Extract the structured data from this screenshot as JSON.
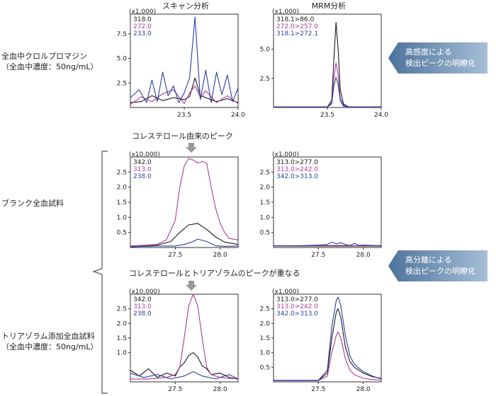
{
  "column_titles": {
    "scan": "スキャン分析",
    "mrm": "MRM分析"
  },
  "row_labels": {
    "row1": [
      "全血中クロルプロマジン",
      "（全血中濃度：50ng/mL）"
    ],
    "row2": [
      "ブランク全血試料"
    ],
    "row3": [
      "トリアゾラム添加全血試料",
      "（全血中濃度：50ng/mL）"
    ]
  },
  "notes": {
    "cholesterol": "コレステロール由来のピーク",
    "overlap": "コレステロールとトリアゾラムのピークが重なる"
  },
  "callouts": [
    {
      "lines": [
        "高感度による",
        "検出ピークの明瞭化"
      ]
    },
    {
      "lines": [
        "高分離による",
        "検出ピークの明瞭化"
      ]
    }
  ],
  "colors": {
    "black": "#1a1a1a",
    "magenta": "#b03a96",
    "blue": "#2b3f9e",
    "callout": "#6a8fb3"
  },
  "chart_data": [
    {
      "id": "scan-chlorpromazine",
      "type": "line",
      "scale_label": "(x1,000)",
      "xlim": [
        23.0,
        24.0
      ],
      "ylim": [
        0,
        9.5
      ],
      "xticks": [
        23.5,
        24.0
      ],
      "yticks": [
        2.5,
        5.0,
        7.5
      ],
      "series": [
        {
          "name": "318.0",
          "color": "black",
          "x": [
            23.0,
            23.1,
            23.2,
            23.3,
            23.4,
            23.5,
            23.55,
            23.6,
            23.65,
            23.7,
            23.8,
            23.9,
            24.0
          ],
          "y": [
            0.5,
            0.6,
            1.2,
            0.7,
            1.0,
            0.8,
            1.1,
            3.0,
            1.2,
            1.0,
            0.6,
            0.9,
            0.5
          ]
        },
        {
          "name": "272.0",
          "color": "magenta",
          "x": [
            23.0,
            23.1,
            23.2,
            23.3,
            23.4,
            23.5,
            23.55,
            23.6,
            23.65,
            23.7,
            23.8,
            23.9,
            24.0
          ],
          "y": [
            0.3,
            1.1,
            0.6,
            1.4,
            1.8,
            0.4,
            1.5,
            2.2,
            1.0,
            1.7,
            0.5,
            1.2,
            0.4
          ]
        },
        {
          "name": "233.0",
          "color": "blue",
          "x": [
            23.0,
            23.08,
            23.15,
            23.2,
            23.25,
            23.3,
            23.35,
            23.4,
            23.45,
            23.5,
            23.55,
            23.6,
            23.65,
            23.7,
            23.75,
            23.8,
            23.85,
            23.9,
            23.95,
            24.0
          ],
          "y": [
            1.0,
            1.8,
            0.5,
            2.8,
            0.6,
            3.6,
            1.2,
            2.2,
            0.5,
            1.5,
            3.0,
            9.2,
            0.8,
            3.8,
            0.5,
            3.6,
            1.3,
            3.3,
            0.6,
            2.0
          ]
        }
      ]
    },
    {
      "id": "mrm-chlorpromazine",
      "type": "line",
      "scale_label": "(x1,000)",
      "xlim": [
        23.0,
        24.0
      ],
      "ylim": [
        0,
        8.0
      ],
      "xticks": [
        23.5,
        24.0
      ],
      "yticks": [
        2.5,
        5.0
      ],
      "series": [
        {
          "name": "318.1>86.0",
          "color": "black",
          "x": [
            23.0,
            23.5,
            23.54,
            23.56,
            23.58,
            23.6,
            23.62,
            23.65,
            23.7,
            24.0
          ],
          "y": [
            0.05,
            0.05,
            0.6,
            4.0,
            7.3,
            5.0,
            1.5,
            0.3,
            0.05,
            0.05
          ]
        },
        {
          "name": "272.0>257.0",
          "color": "magenta",
          "x": [
            23.0,
            23.5,
            23.54,
            23.56,
            23.58,
            23.6,
            23.62,
            23.65,
            23.7,
            24.0
          ],
          "y": [
            0.05,
            0.05,
            0.4,
            2.5,
            3.8,
            2.8,
            0.8,
            0.2,
            0.05,
            0.05
          ]
        },
        {
          "name": "318.1>272.1",
          "color": "blue",
          "x": [
            23.0,
            23.5,
            23.54,
            23.56,
            23.58,
            23.6,
            23.62,
            23.65,
            23.7,
            24.0
          ],
          "y": [
            0.05,
            0.05,
            0.3,
            1.8,
            2.6,
            2.0,
            0.6,
            0.1,
            0.05,
            0.05
          ]
        }
      ]
    },
    {
      "id": "scan-blank",
      "type": "line",
      "scale_label": "(x10,000)",
      "xlim": [
        27.0,
        28.2
      ],
      "ylim": [
        0,
        3.0
      ],
      "xticks": [
        27.5,
        28.0
      ],
      "yticks": [
        0.5,
        1.0,
        1.5,
        2.0,
        2.5
      ],
      "series": [
        {
          "name": "342.0",
          "color": "black",
          "x": [
            27.0,
            27.3,
            27.45,
            27.55,
            27.65,
            27.75,
            27.85,
            27.95,
            28.05,
            28.2
          ],
          "y": [
            0.05,
            0.08,
            0.2,
            0.5,
            0.75,
            0.8,
            0.6,
            0.35,
            0.18,
            0.1
          ]
        },
        {
          "name": "313.0",
          "color": "magenta",
          "x": [
            27.0,
            27.3,
            27.4,
            27.5,
            27.55,
            27.6,
            27.65,
            27.7,
            27.75,
            27.8,
            27.85,
            27.9,
            27.95,
            28.0,
            28.05,
            28.1,
            28.2
          ],
          "y": [
            0.05,
            0.1,
            0.25,
            0.9,
            2.0,
            2.7,
            2.95,
            2.9,
            2.8,
            2.85,
            2.8,
            2.0,
            1.3,
            0.8,
            0.5,
            0.3,
            0.25
          ]
        },
        {
          "name": "238.0",
          "color": "blue",
          "x": [
            27.0,
            27.3,
            27.5,
            27.6,
            27.7,
            27.75,
            27.85,
            27.95,
            28.05,
            28.2
          ],
          "y": [
            0.02,
            0.05,
            0.05,
            0.1,
            0.2,
            0.28,
            0.2,
            0.06,
            0.04,
            0.05
          ]
        }
      ]
    },
    {
      "id": "mrm-blank",
      "type": "line",
      "scale_label": "(x1,000)",
      "xlim": [
        27.0,
        28.2
      ],
      "ylim": [
        0,
        3.0
      ],
      "xticks": [
        27.5,
        28.0
      ],
      "yticks": [
        0.5,
        1.0,
        1.5,
        2.0,
        2.5
      ],
      "series": [
        {
          "name": "313.0>277.0",
          "color": "black",
          "x": [
            27.0,
            27.5,
            27.7,
            27.9,
            28.2
          ],
          "y": [
            0.05,
            0.05,
            0.05,
            0.05,
            0.05
          ]
        },
        {
          "name": "313.0>242.0",
          "color": "magenta",
          "x": [
            27.0,
            27.5,
            27.7,
            27.9,
            28.2
          ],
          "y": [
            0.06,
            0.06,
            0.07,
            0.06,
            0.06
          ]
        },
        {
          "name": "342.0>313.0",
          "color": "blue",
          "x": [
            27.0,
            27.3,
            27.5,
            27.6,
            27.65,
            27.7,
            27.75,
            27.8,
            27.85,
            27.9,
            27.95,
            28.0,
            28.2
          ],
          "y": [
            0.05,
            0.06,
            0.08,
            0.1,
            0.18,
            0.12,
            0.16,
            0.1,
            0.06,
            0.14,
            0.07,
            0.08,
            0.06
          ]
        }
      ]
    },
    {
      "id": "scan-triazolam",
      "type": "line",
      "scale_label": "(x10,000)",
      "xlim": [
        27.0,
        28.2
      ],
      "ylim": [
        0,
        3.0
      ],
      "xticks": [
        27.5,
        28.0
      ],
      "yticks": [
        1.0,
        1.5,
        2.0,
        2.5
      ],
      "series": [
        {
          "name": "342.0",
          "color": "black",
          "x": [
            27.0,
            27.1,
            27.2,
            27.3,
            27.4,
            27.5,
            27.55,
            27.6,
            27.65,
            27.7,
            27.75,
            27.8,
            27.85,
            27.9,
            28.0,
            28.1,
            28.2
          ],
          "y": [
            0.4,
            0.2,
            0.45,
            0.15,
            0.3,
            0.2,
            0.5,
            0.65,
            0.9,
            1.0,
            0.85,
            0.55,
            0.45,
            0.25,
            0.3,
            0.15,
            0.1
          ]
        },
        {
          "name": "313.0",
          "color": "magenta",
          "x": [
            27.0,
            27.2,
            27.4,
            27.5,
            27.55,
            27.6,
            27.65,
            27.7,
            27.75,
            27.8,
            27.85,
            27.9,
            28.0,
            28.1,
            28.2
          ],
          "y": [
            0.1,
            0.1,
            0.15,
            0.25,
            0.5,
            1.5,
            2.6,
            3.0,
            2.6,
            1.5,
            0.5,
            0.25,
            0.15,
            0.12,
            0.1
          ]
        },
        {
          "name": "238.0",
          "color": "blue",
          "x": [
            27.0,
            27.15,
            27.3,
            27.45,
            27.6,
            27.7,
            27.8,
            27.95,
            28.1,
            28.2
          ],
          "y": [
            0.3,
            0.15,
            0.25,
            0.1,
            0.2,
            0.35,
            0.2,
            0.1,
            0.25,
            0.1
          ]
        }
      ]
    },
    {
      "id": "mrm-triazolam",
      "type": "line",
      "scale_label": "(x1,000)",
      "xlim": [
        27.0,
        28.2
      ],
      "ylim": [
        0,
        3.0
      ],
      "xticks": [
        27.5,
        28.0
      ],
      "yticks": [
        0.5,
        1.0,
        1.5,
        2.0,
        2.5
      ],
      "series": [
        {
          "name": "313.0>277.0",
          "color": "black",
          "x": [
            27.0,
            27.5,
            27.6,
            27.65,
            27.7,
            27.72,
            27.75,
            27.8,
            27.85,
            27.9,
            28.0,
            28.1,
            28.2
          ],
          "y": [
            0.05,
            0.05,
            0.3,
            1.5,
            2.4,
            2.5,
            2.2,
            1.2,
            0.7,
            0.5,
            0.3,
            0.18,
            0.12
          ]
        },
        {
          "name": "313.0>242.0",
          "color": "magenta",
          "x": [
            27.0,
            27.5,
            27.6,
            27.65,
            27.7,
            27.72,
            27.75,
            27.8,
            27.85,
            27.9,
            28.0,
            28.1,
            28.2
          ],
          "y": [
            0.04,
            0.04,
            0.2,
            1.0,
            1.6,
            1.7,
            1.5,
            0.8,
            0.4,
            0.25,
            0.12,
            0.08,
            0.06
          ]
        },
        {
          "name": "342.0>313.0",
          "color": "blue",
          "x": [
            27.0,
            27.5,
            27.6,
            27.65,
            27.7,
            27.72,
            27.75,
            27.8,
            27.85,
            27.9,
            28.0,
            28.1,
            28.2
          ],
          "y": [
            0.05,
            0.05,
            0.4,
            1.9,
            2.8,
            2.9,
            2.6,
            1.6,
            0.9,
            0.6,
            0.35,
            0.2,
            0.1
          ]
        }
      ]
    }
  ]
}
